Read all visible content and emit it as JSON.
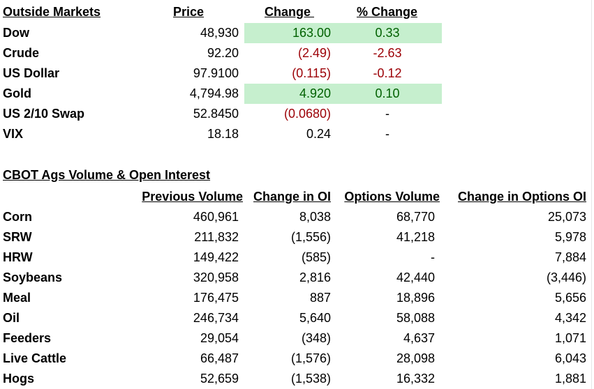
{
  "outside": {
    "title": "Outside Markets",
    "headers": {
      "price": "Price",
      "change": "Change ",
      "pct": "% Change"
    },
    "rows": [
      {
        "name": "Dow",
        "price": "48,930",
        "change": "163.00",
        "pct": "0.33",
        "dir": "pos"
      },
      {
        "name": "Crude",
        "price": "92.20",
        "change": "(2.49)",
        "pct": "-2.63",
        "dir": "neg"
      },
      {
        "name": "US Dollar",
        "price": "97.9100",
        "change": "(0.115)",
        "pct": "-0.12",
        "dir": "neg"
      },
      {
        "name": "Gold",
        "price": "4,794.98",
        "change": "4.920",
        "pct": "0.10",
        "dir": "pos"
      },
      {
        "name": "US 2/10 Swap",
        "price": "52.8450",
        "change": "(0.0680)",
        "pct": "-",
        "dir": "neg"
      },
      {
        "name": "VIX",
        "price": "18.18",
        "change": "0.24",
        "pct": "-",
        "dir": "none"
      }
    ]
  },
  "cbot": {
    "title": "CBOT Ags Volume & Open Interest",
    "headers": {
      "prev_volume": "Previous Volume",
      "change_oi": "Change in OI",
      "options_volume": "Options Volume",
      "change_options_oi": "Change in Options OI"
    },
    "rows": [
      {
        "name": "Corn",
        "prev_volume": "460,961",
        "change_oi": "8,038",
        "options_volume": "68,770",
        "change_options_oi": "25,073"
      },
      {
        "name": "SRW",
        "prev_volume": "211,832",
        "change_oi": "(1,556)",
        "options_volume": "41,218",
        "change_options_oi": "5,978"
      },
      {
        "name": "HRW",
        "prev_volume": "149,422",
        "change_oi": "(585)",
        "options_volume": "-",
        "change_options_oi": "7,884"
      },
      {
        "name": "Soybeans",
        "prev_volume": "320,958",
        "change_oi": "2,816",
        "options_volume": "42,440",
        "change_options_oi": "(3,446)"
      },
      {
        "name": "Meal",
        "prev_volume": "176,475",
        "change_oi": "887",
        "options_volume": "18,896",
        "change_options_oi": "5,656"
      },
      {
        "name": "Oil",
        "prev_volume": "246,734",
        "change_oi": "5,640",
        "options_volume": "58,088",
        "change_options_oi": "4,342"
      },
      {
        "name": "Feeders",
        "prev_volume": "29,054",
        "change_oi": "(348)",
        "options_volume": "4,637",
        "change_options_oi": "1,071"
      },
      {
        "name": "Live Cattle",
        "prev_volume": "66,487",
        "change_oi": "(1,576)",
        "options_volume": "28,098",
        "change_options_oi": "6,043"
      },
      {
        "name": "Hogs",
        "prev_volume": "52,659",
        "change_oi": "(1,538)",
        "options_volume": "16,332",
        "change_options_oi": "1,881"
      }
    ]
  },
  "colors": {
    "positive_fill": "#c6efce",
    "positive_text": "#006100",
    "negative_text": "#9c0006"
  }
}
